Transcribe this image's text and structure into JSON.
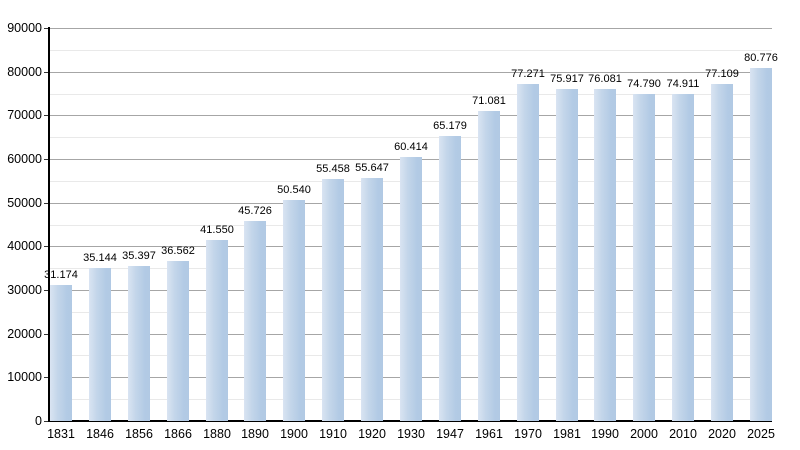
{
  "chart_data": {
    "type": "bar",
    "title": "",
    "xlabel": "",
    "ylabel": "",
    "categories": [
      "1831",
      "1846",
      "1856",
      "1866",
      "1880",
      "1890",
      "1900",
      "1910",
      "1920",
      "1930",
      "1947",
      "1961",
      "1970",
      "1981",
      "1990",
      "2000",
      "2010",
      "2020",
      "2025"
    ],
    "values": [
      31174,
      35144,
      35397,
      36562,
      41550,
      45726,
      50540,
      55458,
      55647,
      60414,
      65179,
      71081,
      77271,
      75917,
      76081,
      74790,
      74911,
      77109,
      80776
    ],
    "value_labels": [
      "31.174",
      "35.144",
      "35.397",
      "36.562",
      "41.550",
      "45.726",
      "50.540",
      "55.458",
      "55.647",
      "60.414",
      "65.179",
      "71.081",
      "77.271",
      "75.917",
      "76.081",
      "74.790",
      "74.911",
      "77.109",
      "80.776"
    ],
    "ylim": [
      0,
      90000
    ],
    "y_major_step": 10000,
    "y_minor_step": 5000,
    "y_tick_labels": [
      "0",
      "10000",
      "20000",
      "30000",
      "40000",
      "50000",
      "60000",
      "70000",
      "80000",
      "90000"
    ],
    "grid": "on",
    "legend": "none",
    "colors": {
      "bar": "#b3cbe5",
      "bar_highlight": "#d9e4f2",
      "major_grid": "#a6a6a6",
      "minor_grid": "#e9e9e9",
      "axis": "#000000",
      "text": "#000000",
      "background": "#ffffff"
    }
  }
}
